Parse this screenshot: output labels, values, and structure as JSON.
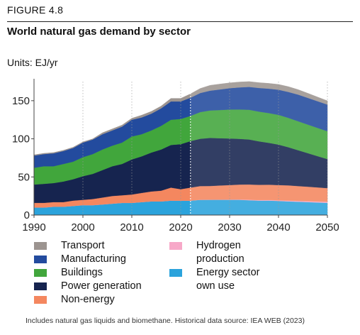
{
  "header": {
    "figure_label": "FIGURE 4.8",
    "title": "World natural gas demand by sector",
    "units": "Units: EJ/yr"
  },
  "footnote": "Includes natural gas liquids and biomethane. Historical data source: IEA WEB (2023)",
  "chart_data": {
    "type": "area",
    "stacked": true,
    "title": "World natural gas demand by sector",
    "ylabel": "",
    "xlabel": "",
    "xlim": [
      1990,
      2050
    ],
    "ylim": [
      0,
      175
    ],
    "x_ticks": [
      1990,
      2000,
      2010,
      2020,
      2030,
      2040,
      2050
    ],
    "y_ticks": [
      0,
      50,
      100,
      150
    ],
    "historical_end": 2022,
    "grid": "vertical dotted at decades",
    "x": [
      1990,
      1992,
      1994,
      1996,
      1998,
      2000,
      2002,
      2004,
      2006,
      2008,
      2010,
      2012,
      2014,
      2016,
      2018,
      2020,
      2022,
      2024,
      2026,
      2028,
      2030,
      2032,
      2034,
      2036,
      2038,
      2040,
      2042,
      2044,
      2046,
      2048,
      2050
    ],
    "series": [
      {
        "name": "Energy sector own use",
        "color": "#2ba3dc",
        "values": [
          10,
          10,
          11,
          11,
          12,
          13,
          13,
          14,
          15,
          16,
          16,
          17,
          18,
          18,
          19,
          19,
          19,
          20,
          20,
          20,
          20,
          20,
          19.5,
          19,
          19,
          18.5,
          18,
          17.5,
          17,
          16.5,
          16
        ]
      },
      {
        "name": "Hydrogen production",
        "color": "#f7a8c8",
        "values": [
          0,
          0,
          0,
          0,
          0,
          0,
          0,
          0,
          0,
          0,
          0,
          0,
          0,
          0,
          0,
          0,
          0,
          0.1,
          0.2,
          0.3,
          0.4,
          0.5,
          0.6,
          0.7,
          0.8,
          0.9,
          1.0,
          1.1,
          1.2,
          1.3,
          1.4
        ]
      },
      {
        "name": "Non-energy",
        "color": "#f4875f",
        "values": [
          6,
          6,
          6,
          6,
          7,
          7,
          8,
          9,
          10,
          10,
          11,
          12,
          13,
          14,
          17,
          15,
          17,
          18,
          18,
          18.5,
          19,
          19.5,
          20,
          20,
          20,
          20,
          20,
          19.5,
          19,
          18.5,
          18
        ]
      },
      {
        "name": "Power generation",
        "color": "#16244f",
        "values": [
          24,
          25,
          25,
          27,
          28,
          31,
          33,
          36,
          39,
          41,
          46,
          48,
          51,
          54,
          56,
          59,
          61,
          62,
          63,
          62,
          61,
          60,
          59,
          57,
          55,
          53,
          50,
          47,
          44,
          41,
          38
        ]
      },
      {
        "name": "Buildings",
        "color": "#41a63c",
        "values": [
          22,
          23,
          22,
          23,
          23,
          25,
          26,
          27,
          27,
          28,
          30,
          29,
          29,
          31,
          33,
          33,
          33,
          35,
          36,
          37,
          38,
          38.5,
          39,
          39,
          39,
          39,
          38.5,
          38,
          37.5,
          37,
          36.5
        ]
      },
      {
        "name": "Manufacturing",
        "color": "#234b9e",
        "values": [
          16,
          16,
          17,
          17,
          18,
          19,
          19,
          20,
          20,
          21,
          22,
          22,
          22,
          23,
          24,
          23,
          24,
          25,
          26,
          27,
          28,
          29,
          30,
          31,
          32,
          33,
          34,
          35,
          35,
          35,
          35
        ]
      },
      {
        "name": "Transport",
        "color": "#9c9490",
        "values": [
          1,
          1,
          1,
          1,
          1,
          1,
          1,
          2,
          2,
          2,
          2,
          3,
          3,
          3,
          4,
          4,
          5,
          6,
          7,
          7,
          7,
          7,
          7,
          7,
          7,
          7,
          7,
          6.5,
          6,
          5.5,
          5
        ]
      }
    ]
  },
  "legend": {
    "col1": [
      {
        "label": "Transport",
        "color": "#9c9490"
      },
      {
        "label": "Manufacturing",
        "color": "#234b9e"
      },
      {
        "label": "Buildings",
        "color": "#41a63c"
      },
      {
        "label": "Power generation",
        "color": "#16244f"
      },
      {
        "label": "Non-energy",
        "color": "#f4875f"
      }
    ],
    "col2": [
      {
        "label": "Hydrogen\nproduction",
        "color": "#f7a8c8"
      },
      {
        "label": "Energy sector\nown use",
        "color": "#2ba3dc"
      }
    ]
  }
}
